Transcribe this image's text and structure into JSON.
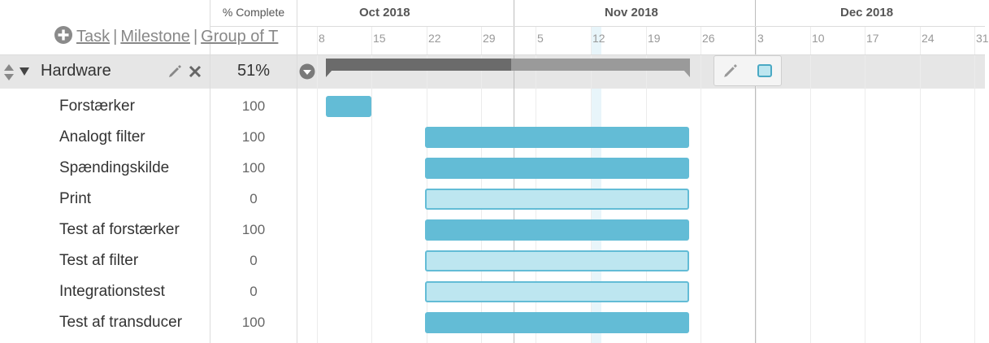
{
  "header": {
    "pct_complete_label": "% Complete",
    "add_links": {
      "task": "Task",
      "milestone": "Milestone",
      "group": "Group of T",
      "separator": "|"
    },
    "months": [
      "Oct 2018",
      "Nov 2018",
      "Dec 2018"
    ],
    "weeks": [
      "8",
      "15",
      "22",
      "29",
      "5",
      "12",
      "19",
      "26",
      "3",
      "10",
      "17",
      "24",
      "31"
    ]
  },
  "group": {
    "name": "Hardware",
    "percent": "51%",
    "progress_fraction": 0.51
  },
  "tasks": [
    {
      "name": "Forstærker",
      "percent": "100"
    },
    {
      "name": "Analogt filter",
      "percent": "100"
    },
    {
      "name": "Spændingskilde",
      "percent": "100"
    },
    {
      "name": "Print",
      "percent": "0"
    },
    {
      "name": "Test af forstærker",
      "percent": "100"
    },
    {
      "name": "Test af filter",
      "percent": "0"
    },
    {
      "name": "Integrationstest",
      "percent": "0"
    },
    {
      "name": "Test af transducer",
      "percent": "100"
    }
  ],
  "colors": {
    "bar_complete": "#63bcd6",
    "bar_incomplete": "#bde6f0",
    "group_bar_done": "#6b6b6b",
    "group_bar_remaining": "#9a9a9a",
    "today_highlight": "#e8f5fa"
  },
  "icons": {
    "add": "plus-circle-icon",
    "reorder": "sort-arrows-icon",
    "collapse": "triangle-down-icon",
    "edit": "pencil-icon",
    "delete": "close-icon",
    "group_menu": "chevron-down-circle-icon"
  }
}
